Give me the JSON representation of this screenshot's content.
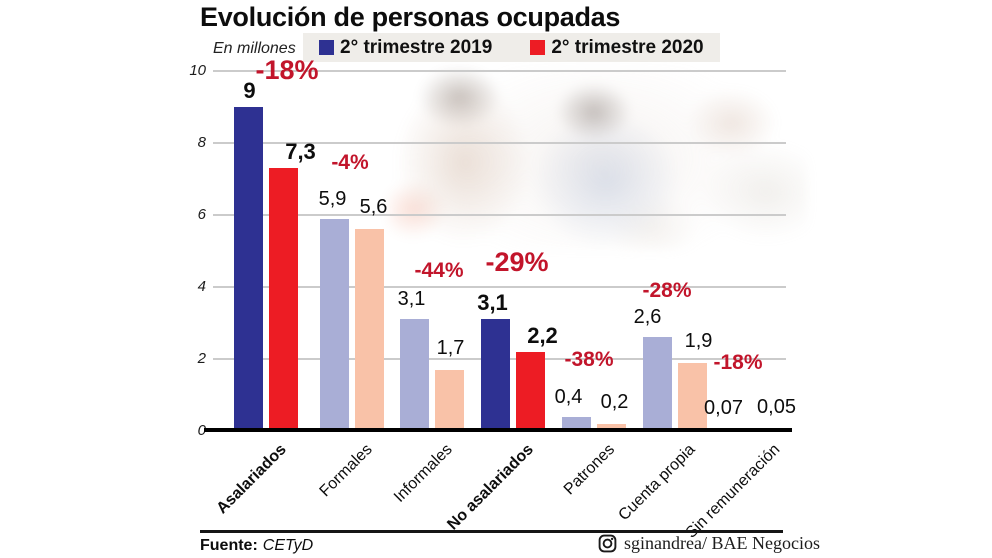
{
  "title": "Evolución de personas ocupadas",
  "units_label": "En millones",
  "legend": [
    {
      "label": "2° trimestre 2019",
      "color": "#2e3192"
    },
    {
      "label": "2° trimestre 2020",
      "color": "#ed1c24"
    }
  ],
  "footer": {
    "source_label": "Fuente:",
    "source_value": "CETyD",
    "credit": "sginandrea/ BAE Negocios",
    "credit_icon": "instagram-icon"
  },
  "colors": {
    "bar_2019": "#2e3192",
    "bar_2020": "#ed1c24",
    "bar_2019_light": "#a9aed6",
    "bar_2020_light": "#f9c2a8",
    "pct_label": "#c2152b",
    "grid": "#cbcbcb",
    "legend_bg": "#efede9"
  },
  "chart_data": {
    "type": "bar",
    "title": "Evolución de personas ocupadas",
    "ylabel": "En millones",
    "xlabel": "",
    "ylim": [
      0,
      10
    ],
    "yticks": [
      0,
      2,
      4,
      6,
      8,
      10
    ],
    "grid": true,
    "legend_position": "top",
    "categories": [
      "Asalariados",
      "Formales",
      "Informales",
      "No asalariados",
      "Patrones",
      "Cuenta propia",
      "Sin remuneración"
    ],
    "emphasized": [
      true,
      false,
      false,
      true,
      false,
      false,
      false
    ],
    "series": [
      {
        "name": "2° trimestre 2019",
        "color": "#2e3192",
        "light_color": "#a9aed6",
        "values": [
          9,
          5.9,
          3.1,
          3.1,
          0.4,
          2.6,
          0.07
        ]
      },
      {
        "name": "2° trimestre 2020",
        "color": "#ed1c24",
        "light_color": "#f9c2a8",
        "values": [
          7.3,
          5.6,
          1.7,
          2.2,
          0.2,
          1.9,
          0.05
        ]
      }
    ],
    "value_labels": [
      [
        "9",
        "7,3"
      ],
      [
        "5,9",
        "5,6"
      ],
      [
        "3,1",
        "1,7"
      ],
      [
        "3,1",
        "2,2"
      ],
      [
        "0,4",
        "0,2"
      ],
      [
        "2,6",
        "1,9"
      ],
      [
        "0,07",
        "0,05"
      ]
    ],
    "pct_change": [
      "-18%",
      "-4%",
      "-44%",
      "-29%",
      "-38%",
      "-28%",
      "-18%"
    ]
  }
}
